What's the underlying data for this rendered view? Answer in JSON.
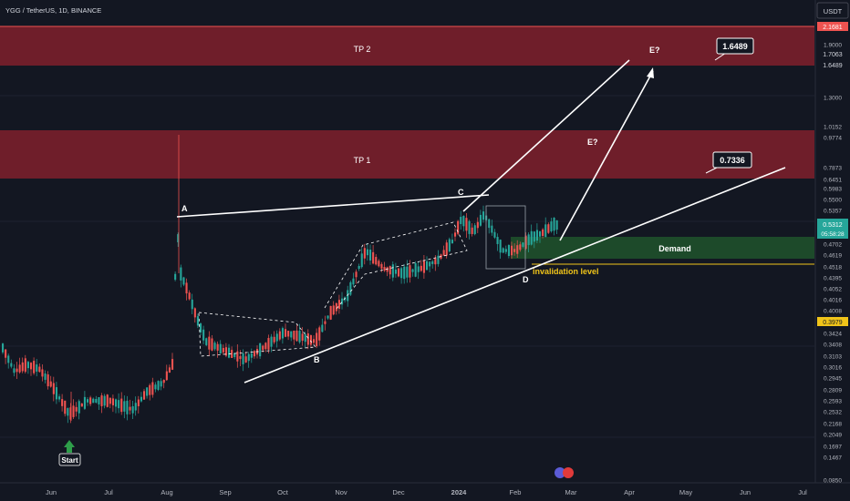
{
  "header": {
    "symbol_title": "YGG / TetherUS, 1D, BINANCE",
    "currency": "USDT"
  },
  "colors": {
    "background": "#131722",
    "bull": "#26a69a",
    "bear": "#ef5350",
    "zone_red": "#7a1f2b",
    "zone_green": "#1e4d2b",
    "annotation": "#ffffff",
    "invalidation": "#f0c419",
    "start_arrow": "#2e9e4a"
  },
  "chart_data": {
    "type": "candlestick",
    "x_ticks": [
      "Jun",
      "Jul",
      "Aug",
      "Sep",
      "Oct",
      "Nov",
      "Dec",
      "2024",
      "Feb",
      "Mar",
      "Apr",
      "May",
      "Jun",
      "Jul"
    ],
    "y_ticks": [
      "1.9000",
      "1.3000",
      "1.0152",
      "0.9774",
      "0.7873",
      "0.6451",
      "0.5983",
      "0.5500",
      "0.5357",
      "0.4702",
      "0.4619",
      "0.4518",
      "0.4395",
      "0.4052",
      "0.4016",
      "0.4008",
      "0.3424",
      "0.3408",
      "0.3103",
      "0.3016",
      "0.2945",
      "0.2809",
      "0.2593",
      "0.2532",
      "0.2168",
      "0.2049",
      "0.1697",
      "0.1467",
      "0.0850"
    ],
    "price_badges": {
      "top_red": "2.1681",
      "tp_upper": "1.7063",
      "tp_lower": "1.6489",
      "current_price": "0.5312",
      "countdown": "05:58:28",
      "yellow": "0.3979"
    },
    "zones": [
      {
        "label": "TP 2",
        "kind": "target"
      },
      {
        "label": "TP 1",
        "kind": "target"
      },
      {
        "label": "Demand",
        "kind": "demand"
      }
    ],
    "wave_labels": [
      "A",
      "B",
      "C",
      "D",
      "E?",
      "E?"
    ],
    "callouts": [
      "1.6489",
      "0.7336"
    ],
    "invalidation_label": "invalidation level",
    "start_label": "Start"
  }
}
